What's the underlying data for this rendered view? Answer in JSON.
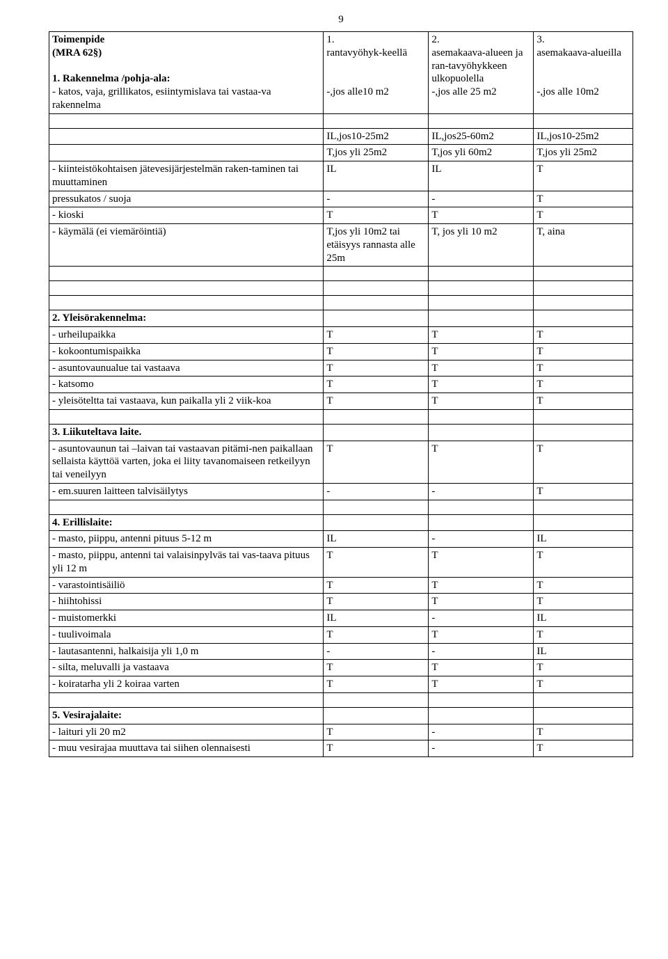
{
  "page_number": "9",
  "columns": {
    "widths_pct": [
      47,
      18,
      18,
      17
    ]
  },
  "header": {
    "c0a": "Toimenpide",
    "c0b": "(MRA 62§)",
    "c1a": "1.",
    "c1b": "rantavyöhyk-keellä",
    "c2a": "2.",
    "c2b": "asemakaava-alueen ja ran-tavyöhykkeen ulkopuolella",
    "c3a": "3.",
    "c3b": "asemakaava-alueilla"
  },
  "section1": {
    "title": "1. Rakennelma /pohja-ala:",
    "row1": {
      "c0": "- katos, vaja, grillikatos, esiintymislava tai vastaa-va rakennelma",
      "c1": "-,jos alle10 m2",
      "c2": "-,jos alle 25 m2",
      "c3": "-,jos alle 10m2"
    },
    "row2": {
      "c1": "IL,jos10-25m2",
      "c2": "IL,jos25-60m2",
      "c3": "IL,jos10-25m2"
    },
    "row3": {
      "c1": "T,jos yli 25m2",
      "c2": "T,jos yli 60m2",
      "c3": "T,jos yli 25m2"
    },
    "row4": {
      "c0": "- kiinteistökohtaisen jätevesijärjestelmän raken-taminen tai muuttaminen",
      "c1": "IL",
      "c2": "IL",
      "c3": "T"
    },
    "row5": {
      "c0": "pressukatos / suoja",
      "c1": "-",
      "c2": "-",
      "c3": "T"
    },
    "row6": {
      "c0": "- kioski",
      "c1": "T",
      "c2": "T",
      "c3": "T"
    },
    "row7": {
      "c0": "- käymälä (ei viemäröintiä)",
      "c1": "T,jos yli 10m2 tai etäisyys rannasta alle 25m",
      "c2": "T, jos yli 10 m2",
      "c3": "T, aina"
    }
  },
  "section2": {
    "title": "2. Yleisörakennelma:",
    "rows": [
      {
        "c0": "- urheilupaikka",
        "c1": "T",
        "c2": "T",
        "c3": "T"
      },
      {
        "c0": "- kokoontumispaikka",
        "c1": "T",
        "c2": "T",
        "c3": "T"
      },
      {
        "c0": "- asuntovaunualue tai vastaava",
        "c1": "T",
        "c2": "T",
        "c3": "T"
      },
      {
        "c0": "- katsomo",
        "c1": "T",
        "c2": "T",
        "c3": "T"
      },
      {
        "c0": "- yleisöteltta tai vastaava, kun paikalla yli 2 viik-koa",
        "c1": "T",
        "c2": "T",
        "c3": "T"
      }
    ]
  },
  "section3": {
    "title": "3. Liikuteltava laite.",
    "rows": [
      {
        "c0": "- asuntovaunun tai –laivan tai vastaavan pitämi-nen paikallaan sellaista käyttöä varten, joka ei liity tavanomaiseen retkeilyyn tai veneilyyn",
        "c1": "T",
        "c2": "T",
        "c3": "T"
      },
      {
        "c0": "- em.suuren laitteen talvisäilytys",
        "c1": "-",
        "c2": "-",
        "c3": "T"
      }
    ]
  },
  "section4": {
    "title": "4. Erillislaite:",
    "rows": [
      {
        "c0": "- masto, piippu, antenni pituus 5-12 m",
        "c1": "IL",
        "c2": "-",
        "c3": "IL"
      },
      {
        "c0": "- masto, piippu, antenni tai valaisinpylväs tai vas-taava pituus yli 12 m",
        "c1": "T",
        "c2": "T",
        "c3": "T"
      },
      {
        "c0": "- varastointisäiliö",
        "c1": "T",
        "c2": "T",
        "c3": "T"
      },
      {
        "c0": "- hiihtohissi",
        "c1": "T",
        "c2": "T",
        "c3": "T"
      },
      {
        "c0": "- muistomerkki",
        "c1": "IL",
        "c2": "-",
        "c3": "IL"
      },
      {
        "c0": "- tuulivoimala",
        "c1": "T",
        "c2": "T",
        "c3": "T"
      },
      {
        "c0": "- lautasantenni, halkaisija yli 1,0 m",
        "c1": "-",
        "c2": "-",
        "c3": "IL"
      },
      {
        "c0": "- silta, meluvalli ja vastaava",
        "c1": "T",
        "c2": "T",
        "c3": "T"
      },
      {
        "c0": "- koiratarha yli 2 koiraa varten",
        "c1": "T",
        "c2": "T",
        "c3": "T"
      }
    ]
  },
  "section5": {
    "title": "5. Vesirajalaite:",
    "rows": [
      {
        "c0": "- laituri yli 20 m2",
        "c1": "T",
        "c2": "-",
        "c3": "T"
      },
      {
        "c0": "- muu vesirajaa muuttava tai siihen olennaisesti",
        "c1": "T",
        "c2": "-",
        "c3": "T"
      }
    ]
  }
}
